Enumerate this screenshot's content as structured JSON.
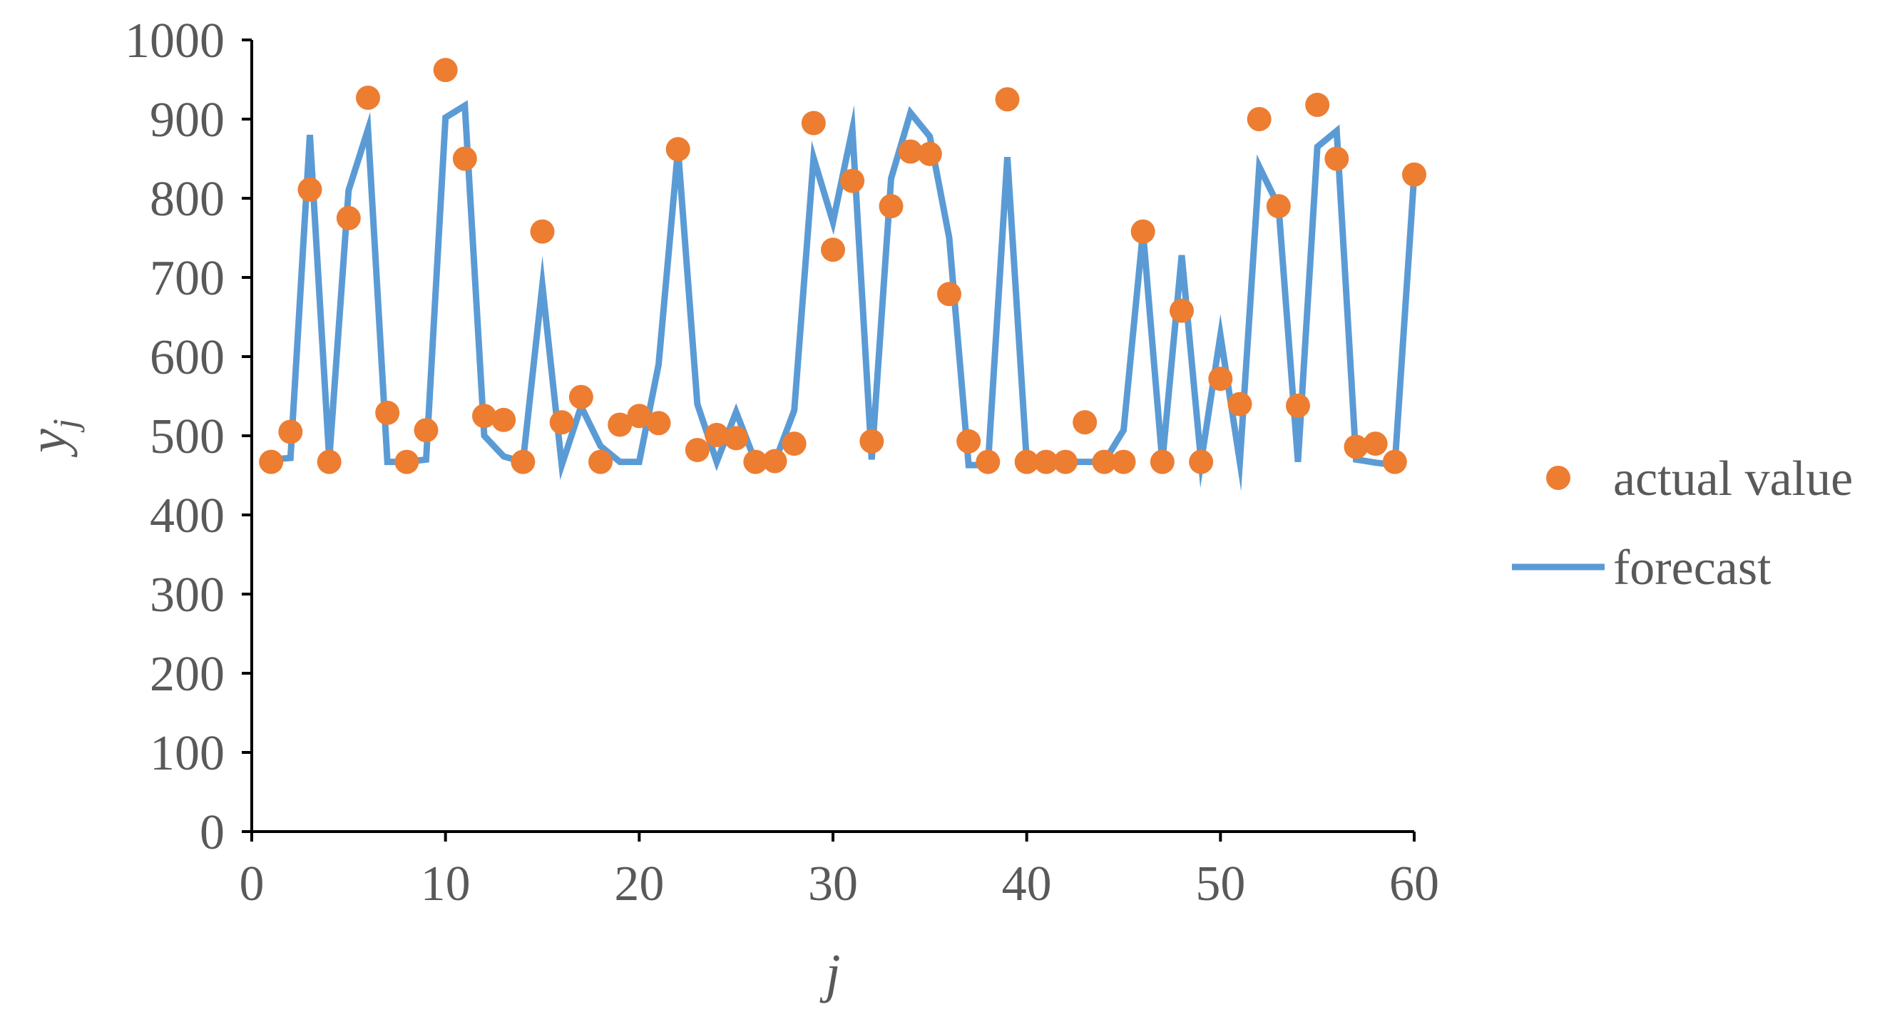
{
  "chart_data": {
    "type": "scatter+line",
    "xlabel": "j",
    "ylabel": {
      "base": "y",
      "subscript": "j"
    },
    "xlim": [
      0,
      60
    ],
    "ylim": [
      0,
      1000
    ],
    "x_ticks": [
      0,
      10,
      20,
      30,
      40,
      50,
      60
    ],
    "y_ticks": [
      0,
      100,
      200,
      300,
      400,
      500,
      600,
      700,
      800,
      900,
      1000
    ],
    "grid": false,
    "legend_position": "right",
    "series": [
      {
        "name": "actual value",
        "kind": "scatter",
        "color": "#ED7D31",
        "x": [
          1,
          2,
          3,
          4,
          5,
          6,
          7,
          8,
          9,
          10,
          11,
          12,
          13,
          14,
          15,
          16,
          17,
          18,
          19,
          20,
          21,
          22,
          23,
          24,
          25,
          26,
          27,
          28,
          29,
          30,
          31,
          32,
          33,
          34,
          35,
          36,
          37,
          38,
          39,
          40,
          41,
          42,
          43,
          44,
          45,
          46,
          47,
          48,
          49,
          50,
          51,
          52,
          53,
          54,
          55,
          56,
          57,
          58,
          59,
          60
        ],
        "y": [
          467,
          505,
          811,
          467,
          775,
          927,
          529,
          467,
          507,
          962,
          850,
          525,
          520,
          467,
          758,
          517,
          549,
          467,
          514,
          525,
          516,
          862,
          482,
          501,
          497,
          467,
          468,
          490,
          895,
          735,
          822,
          493,
          790,
          859,
          856,
          679,
          493,
          467,
          925,
          467,
          467,
          467,
          517,
          467,
          467,
          758,
          467,
          658,
          467,
          572,
          540,
          900,
          790,
          538,
          918,
          850,
          486,
          490,
          467,
          830
        ]
      },
      {
        "name": "forecast",
        "kind": "line",
        "color": "#5B9BD5",
        "x": [
          1,
          2,
          3,
          4,
          5,
          6,
          7,
          8,
          9,
          10,
          11,
          12,
          13,
          14,
          15,
          16,
          17,
          18,
          19,
          20,
          21,
          22,
          23,
          24,
          25,
          26,
          27,
          28,
          29,
          30,
          31,
          32,
          33,
          34,
          35,
          36,
          37,
          38,
          39,
          40,
          41,
          42,
          43,
          44,
          45,
          46,
          47,
          48,
          49,
          50,
          51,
          52,
          53,
          54,
          55,
          56,
          57,
          58,
          59,
          60
        ],
        "y": [
          470,
          472,
          880,
          470,
          810,
          887,
          467,
          467,
          470,
          902,
          917,
          500,
          474,
          467,
          690,
          463,
          537,
          487,
          467,
          467,
          590,
          862,
          540,
          467,
          530,
          467,
          467,
          532,
          851,
          770,
          887,
          470,
          825,
          908,
          878,
          750,
          463,
          463,
          852,
          467,
          467,
          467,
          467,
          467,
          507,
          758,
          467,
          728,
          467,
          627,
          467,
          840,
          790,
          467,
          865,
          885,
          470,
          466,
          463,
          830
        ]
      }
    ]
  }
}
